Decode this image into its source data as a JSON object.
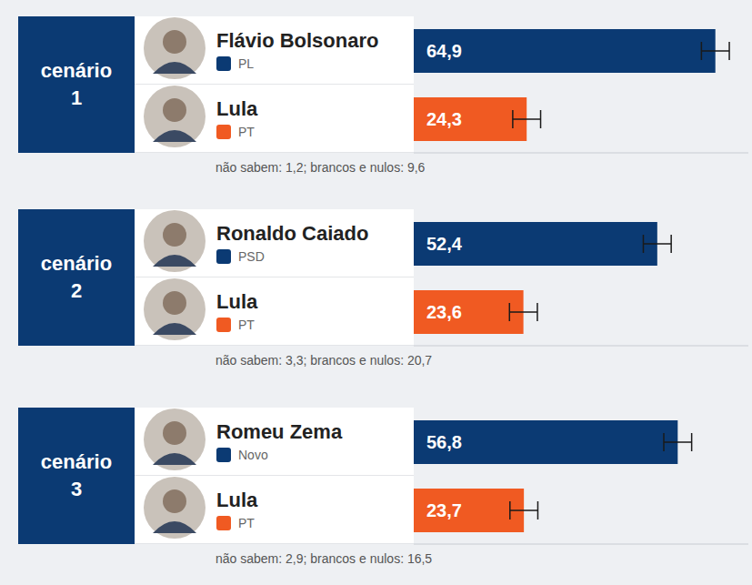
{
  "chart_data": [
    {
      "type": "bar",
      "orientation": "horizontal",
      "title": "cenário 1",
      "categories": [
        "Flávio Bolsonaro",
        "Lula"
      ],
      "parties": [
        "PL",
        "PT"
      ],
      "values": [
        64.9,
        24.3
      ],
      "value_labels": [
        "64,9",
        "24,3"
      ],
      "error": [
        3,
        3
      ],
      "colors": [
        "#0b3a73",
        "#f05a22"
      ],
      "note": "não sabem: 1,2; brancos e nulos: 9,6",
      "xlim": [
        0,
        72
      ],
      "tick_labels": false,
      "data_labels": true
    },
    {
      "type": "bar",
      "orientation": "horizontal",
      "title": "cenário 2",
      "categories": [
        "Ronaldo Caiado",
        "Lula"
      ],
      "parties": [
        "PSD",
        "PT"
      ],
      "values": [
        52.4,
        23.6
      ],
      "value_labels": [
        "52,4",
        "23,6"
      ],
      "error": [
        3,
        3
      ],
      "colors": [
        "#0b3a73",
        "#f05a22"
      ],
      "note": "não sabem: 3,3; brancos e nulos: 20,7",
      "xlim": [
        0,
        72
      ],
      "tick_labels": false,
      "data_labels": true
    },
    {
      "type": "bar",
      "orientation": "horizontal",
      "title": "cenário 3",
      "categories": [
        "Romeu Zema",
        "Lula"
      ],
      "parties": [
        "Novo",
        "PT"
      ],
      "values": [
        56.8,
        23.7
      ],
      "value_labels": [
        "56,8",
        "23,7"
      ],
      "error": [
        3,
        3
      ],
      "colors": [
        "#0b3a73",
        "#f05a22"
      ],
      "note": "não sabem: 2,9; brancos e nulos: 16,5",
      "xlim": [
        0,
        72
      ],
      "tick_labels": false,
      "data_labels": true
    }
  ]
}
